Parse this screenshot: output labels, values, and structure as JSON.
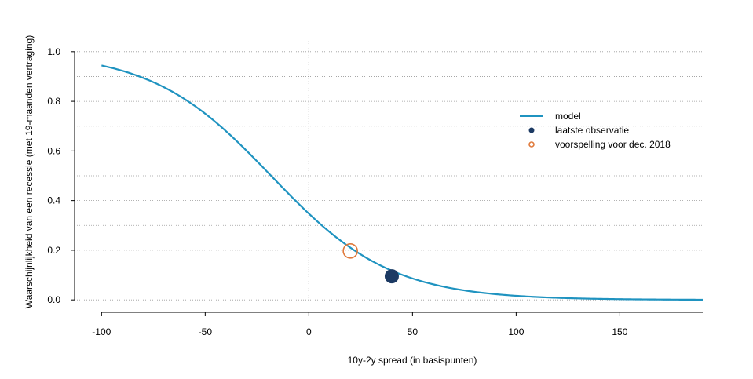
{
  "chart_data": {
    "type": "line",
    "xlabel": "10y-2y spread (in basispunten)",
    "ylabel": "Waarschijnlijkheid van een recessie (met 19-maanden vertraging)",
    "xlim": [
      -113,
      190
    ],
    "ylim": [
      -0.05,
      1.05
    ],
    "x_ticks": [
      -100,
      -50,
      0,
      50,
      100,
      150
    ],
    "x_tick_labels": [
      "-100",
      "-50",
      "0",
      "50",
      "100",
      "150"
    ],
    "y_ticks": [
      0.0,
      0.2,
      0.4,
      0.6,
      0.8,
      1.0
    ],
    "y_tick_labels": [
      "0.0",
      "0.2",
      "0.4",
      "0.6",
      "0.8",
      "1.0"
    ],
    "y_gridlines": [
      0.0,
      0.1,
      0.2,
      0.3,
      0.4,
      0.5,
      0.6,
      0.7,
      0.8,
      0.9,
      1.0
    ],
    "grid": true,
    "vertical_reference_line_x": 0,
    "model_curve": {
      "intercept": -0.63,
      "slope": -0.0346,
      "x_range": [
        -100,
        190
      ]
    },
    "series": [
      {
        "name": "model",
        "kind": "line",
        "color": "#1f93c0"
      },
      {
        "name": "laatste observatie",
        "kind": "point",
        "x": 40,
        "y": 0.095,
        "color": "#1c3a63"
      },
      {
        "name": "voorspelling voor dec. 2018",
        "kind": "open-point",
        "x": 20,
        "y": 0.197,
        "color": "#e07a3c"
      }
    ],
    "legend": {
      "placement": "top-right",
      "entries": [
        "model",
        "laatste observatie",
        "voorspelling voor dec. 2018"
      ]
    }
  }
}
